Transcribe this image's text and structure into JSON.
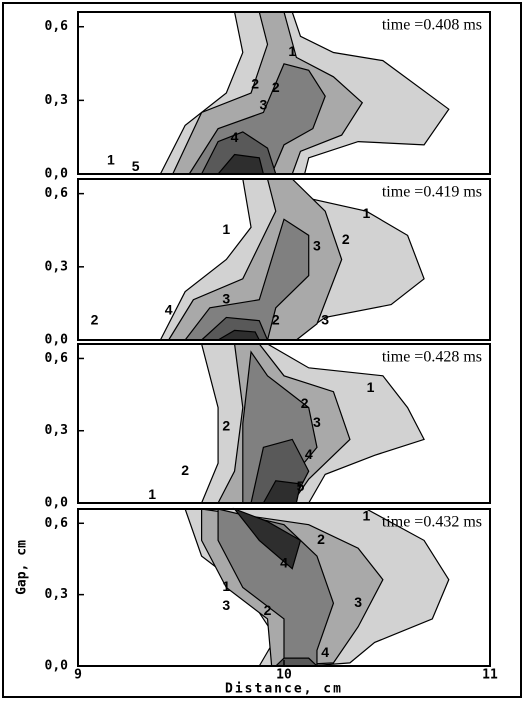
{
  "chart_data": [
    {
      "type": "contour",
      "title": "time =0.408 ms",
      "xlim": [
        9,
        11
      ],
      "ylim": [
        0,
        0.66
      ],
      "yticks": [
        {
          "value": 0,
          "label": "0,0"
        },
        {
          "value": 0.3,
          "label": "0,3"
        },
        {
          "value": 0.6,
          "label": "0,6"
        }
      ],
      "contour_labels": [
        1,
        2,
        2,
        3,
        4,
        1,
        5
      ]
    },
    {
      "type": "contour",
      "title": "time =0.419 ms",
      "xlim": [
        9,
        11
      ],
      "ylim": [
        0,
        0.66
      ],
      "yticks": [
        {
          "value": 0,
          "label": "0,0"
        },
        {
          "value": 0.3,
          "label": "0,3"
        },
        {
          "value": 0.6,
          "label": "0,6"
        }
      ],
      "contour_labels": [
        1,
        1,
        3,
        2,
        3,
        2,
        4,
        2,
        3
      ]
    },
    {
      "type": "contour",
      "title": "time =0.428 ms",
      "xlim": [
        9,
        11
      ],
      "ylim": [
        0,
        0.66
      ],
      "yticks": [
        {
          "value": 0,
          "label": "0,0"
        },
        {
          "value": 0.3,
          "label": "0,3"
        },
        {
          "value": 0.6,
          "label": "0,6"
        }
      ],
      "contour_labels": [
        1,
        2,
        3,
        2,
        4,
        5,
        2,
        1
      ]
    },
    {
      "type": "contour",
      "title": "time =0.432 ms",
      "xlim": [
        9,
        11
      ],
      "ylim": [
        0,
        0.66
      ],
      "yticks": [
        {
          "value": 0,
          "label": "0,0"
        },
        {
          "value": 0.3,
          "label": "0,3"
        },
        {
          "value": 0.6,
          "label": "0,6"
        }
      ],
      "xticks": [
        9,
        10,
        11
      ],
      "xlabel": "Distance, cm",
      "ylabel": "Gap, cm",
      "contour_labels": [
        1,
        2,
        4,
        1,
        3,
        2,
        3,
        4
      ]
    }
  ]
}
